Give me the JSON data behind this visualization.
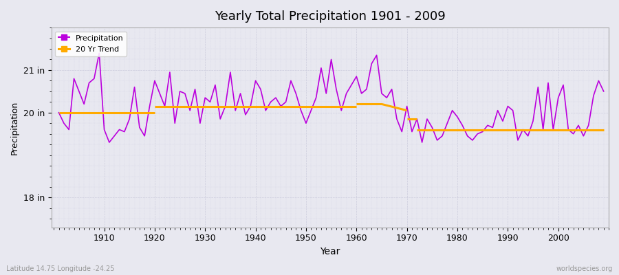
{
  "title": "Yearly Total Precipitation 1901 - 2009",
  "xlabel": "Year",
  "ylabel": "Precipitation",
  "ytick_labels": [
    "18 in",
    "20 in",
    "21 in"
  ],
  "ytick_values": [
    18,
    20,
    21
  ],
  "ylim": [
    17.3,
    22.0
  ],
  "xlim": [
    1899.5,
    2010
  ],
  "bg_color": "#e8e8f0",
  "grid_color": "#d8d8e8",
  "precip_color": "#bb00dd",
  "trend_color": "#ffaa00",
  "bottom_left_text": "Latitude 14.75 Longitude -24.25",
  "bottom_right_text": "worldspecies.org",
  "years": [
    1901,
    1902,
    1903,
    1904,
    1905,
    1906,
    1907,
    1908,
    1909,
    1910,
    1911,
    1912,
    1913,
    1914,
    1915,
    1916,
    1917,
    1918,
    1919,
    1920,
    1921,
    1922,
    1923,
    1924,
    1925,
    1926,
    1927,
    1928,
    1929,
    1930,
    1931,
    1932,
    1933,
    1934,
    1935,
    1936,
    1937,
    1938,
    1939,
    1940,
    1941,
    1942,
    1943,
    1944,
    1945,
    1946,
    1947,
    1948,
    1949,
    1950,
    1951,
    1952,
    1953,
    1954,
    1955,
    1956,
    1957,
    1958,
    1959,
    1960,
    1961,
    1962,
    1963,
    1964,
    1965,
    1966,
    1967,
    1968,
    1969,
    1970,
    1971,
    1972,
    1973,
    1974,
    1975,
    1976,
    1977,
    1978,
    1979,
    1980,
    1981,
    1982,
    1983,
    1984,
    1985,
    1986,
    1987,
    1988,
    1989,
    1990,
    1991,
    1992,
    1993,
    1994,
    1995,
    1996,
    1997,
    1998,
    1999,
    2000,
    2001,
    2002,
    2003,
    2004,
    2005,
    2006,
    2007,
    2008,
    2009
  ],
  "precip": [
    20.0,
    19.75,
    19.6,
    20.8,
    20.5,
    20.2,
    20.7,
    20.8,
    21.4,
    19.6,
    19.3,
    19.45,
    19.6,
    19.55,
    19.85,
    20.6,
    19.65,
    19.45,
    20.15,
    20.75,
    20.45,
    20.15,
    20.95,
    19.75,
    20.5,
    20.45,
    20.05,
    20.55,
    19.75,
    20.35,
    20.25,
    20.65,
    19.85,
    20.15,
    20.95,
    20.05,
    20.45,
    19.95,
    20.15,
    20.75,
    20.55,
    20.05,
    20.25,
    20.35,
    20.15,
    20.25,
    20.75,
    20.45,
    20.05,
    19.75,
    20.05,
    20.35,
    21.05,
    20.45,
    21.25,
    20.55,
    20.05,
    20.45,
    20.65,
    20.85,
    20.45,
    20.55,
    21.15,
    21.35,
    20.45,
    20.35,
    20.55,
    19.85,
    19.55,
    20.15,
    19.55,
    19.85,
    19.3,
    19.85,
    19.65,
    19.35,
    19.45,
    19.75,
    20.05,
    19.9,
    19.7,
    19.45,
    19.35,
    19.5,
    19.55,
    19.7,
    19.65,
    20.05,
    19.8,
    20.15,
    20.05,
    19.35,
    19.6,
    19.45,
    19.8,
    20.6,
    19.6,
    20.7,
    19.6,
    20.35,
    20.65,
    19.6,
    19.5,
    19.7,
    19.45,
    19.7,
    20.4,
    20.75,
    20.5
  ],
  "trend_segments": [
    {
      "x": [
        1901,
        1920
      ],
      "y": [
        20.0,
        20.0
      ]
    },
    {
      "x": [
        1920,
        1960
      ],
      "y": [
        20.15,
        20.15
      ]
    },
    {
      "x": [
        1960,
        1965
      ],
      "y": [
        20.2,
        20.2
      ]
    },
    {
      "x": [
        1965,
        1970
      ],
      "y": [
        20.2,
        20.05
      ]
    },
    {
      "x": [
        1970,
        1972
      ],
      "y": [
        19.85,
        19.85
      ]
    },
    {
      "x": [
        1972,
        2009
      ],
      "y": [
        19.6,
        19.6
      ]
    }
  ]
}
